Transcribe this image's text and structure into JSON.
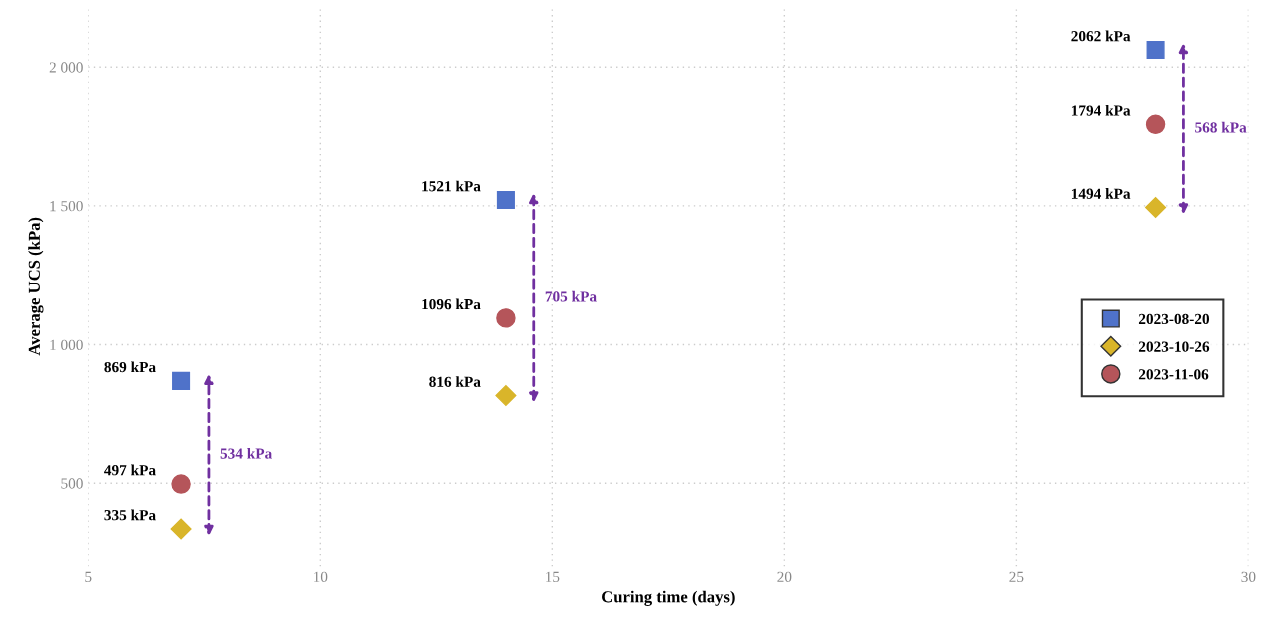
{
  "chart_data": {
    "type": "scatter",
    "xlabel": "Curing time (days)",
    "ylabel": "Average UCS (kPa)",
    "xlim": [
      5,
      30
    ],
    "xticks": [
      5,
      10,
      15,
      20,
      25,
      30
    ],
    "ylim": [
      200,
      2220
    ],
    "yticks": [
      500,
      {
        "value": 1000,
        "label": "1 000"
      },
      {
        "value": 1500,
        "label": "1 500"
      },
      {
        "value": 2000,
        "label": "2 000"
      }
    ],
    "grid": true,
    "legend": "right",
    "series": [
      {
        "name": "2023-08-20",
        "color": "#4f72c9",
        "marker": "square",
        "x": [
          7,
          14,
          28
        ],
        "values": [
          869,
          1521,
          2062
        ],
        "value_labels": [
          "869 kPa",
          "1521 kPa",
          "2062 kPa"
        ]
      },
      {
        "name": "2023-10-26",
        "color": "#d9b52a",
        "marker": "diamond",
        "x": [
          7,
          14,
          28
        ],
        "values": [
          335,
          816,
          1494
        ],
        "value_labels": [
          "335 kPa",
          "816 kPa",
          "1494 kPa"
        ]
      },
      {
        "name": "2023-11-06",
        "color": "#b5555a",
        "marker": "circle",
        "x": [
          7,
          14,
          28
        ],
        "values": [
          497,
          1096,
          1794
        ],
        "value_labels": [
          "497 kPa",
          "1096 kPa",
          "1794 kPa"
        ]
      }
    ],
    "annotations": [
      "534 kPa",
      "705 kPa",
      "568 kPa"
    ]
  }
}
